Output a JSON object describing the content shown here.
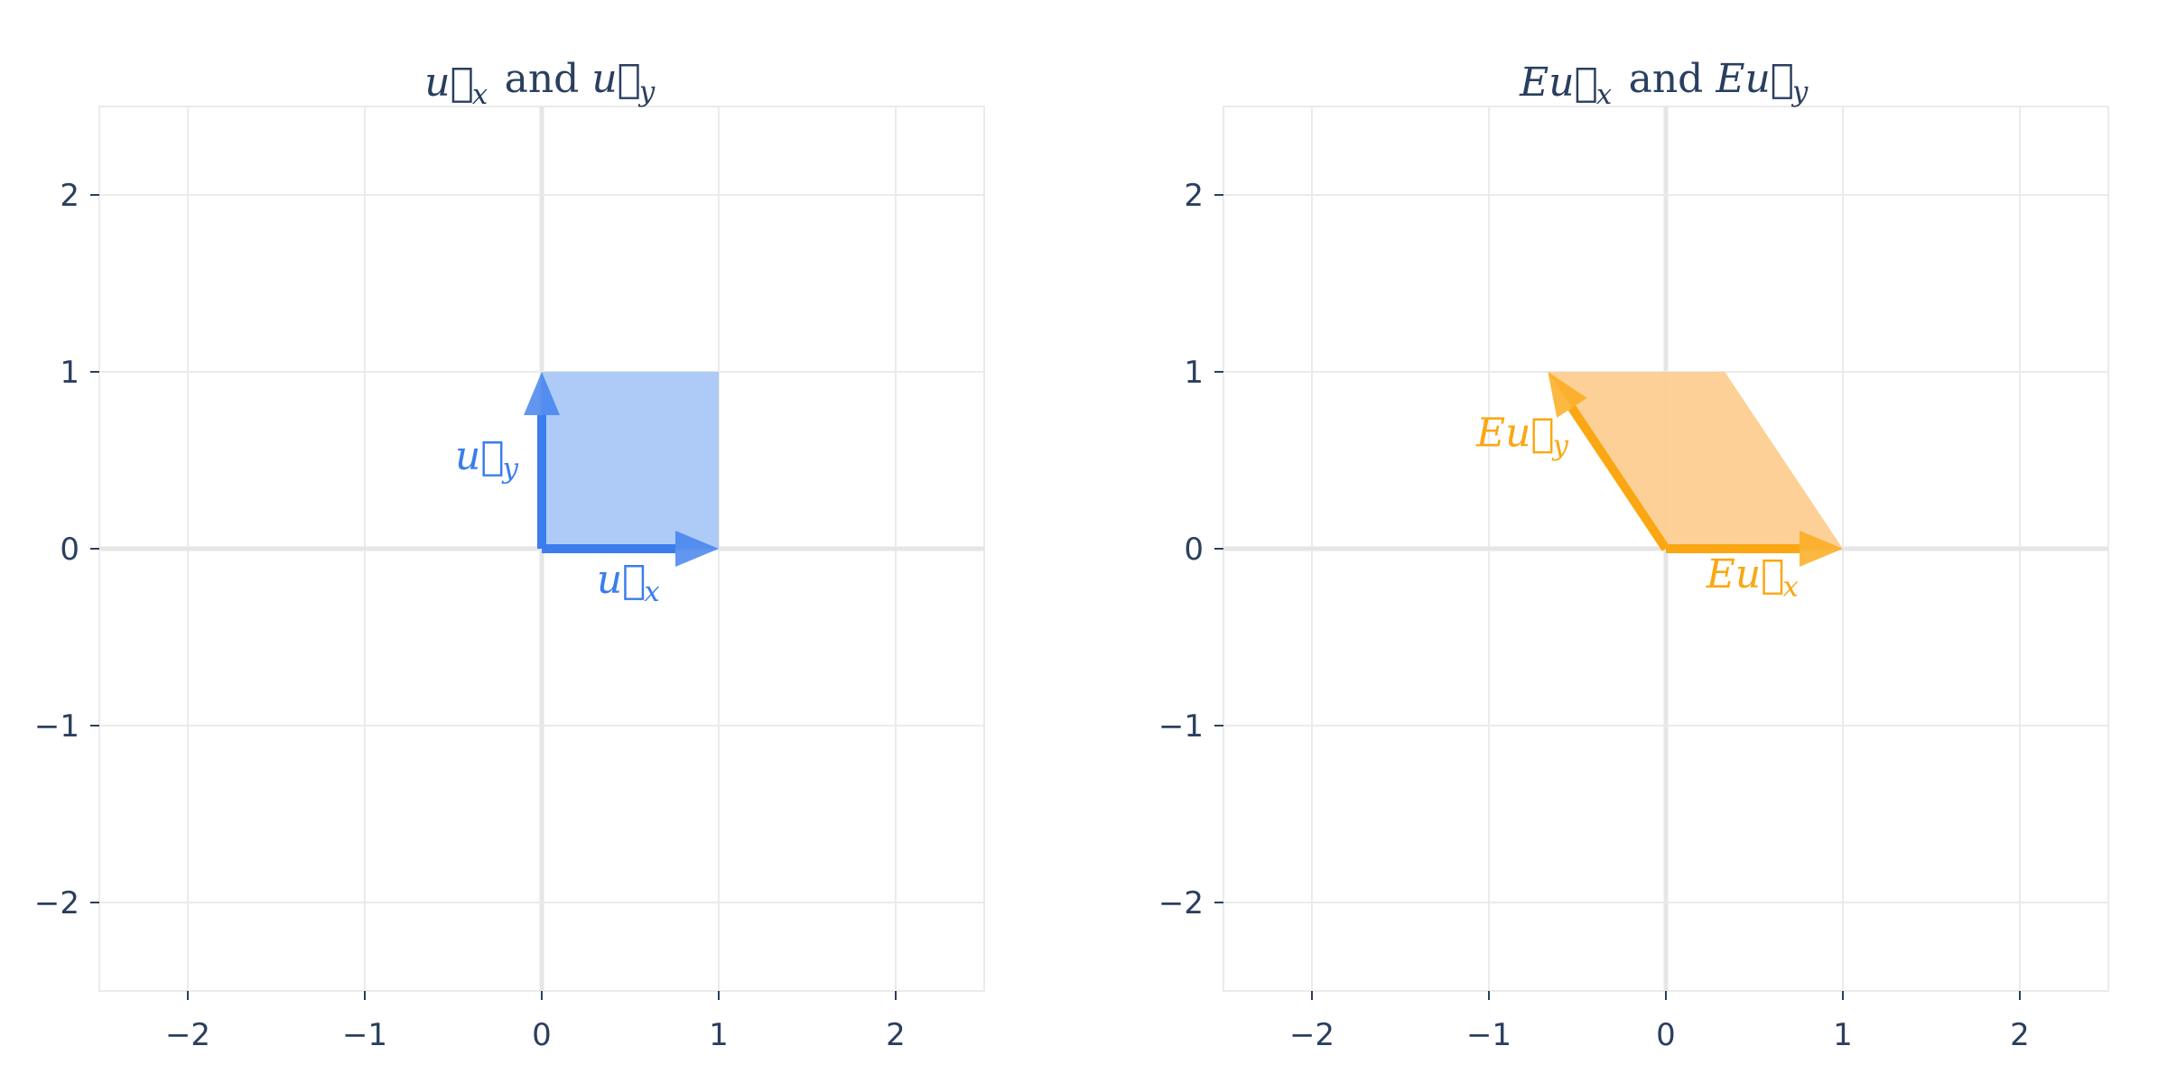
{
  "chart_data": [
    {
      "type": "vector",
      "title": {
        "parts": [
          [
            "u",
            "x"
          ],
          [
            "u",
            "y"
          ]
        ],
        "prefix": "",
        "joiner": "and"
      },
      "xlim": [
        -2.5,
        2.5
      ],
      "ylim": [
        -2.5,
        2.5
      ],
      "xticks": [
        -2,
        -1,
        0,
        1,
        2
      ],
      "yticks": [
        -2,
        -1,
        0,
        1,
        2
      ],
      "tick_text": {
        "-2": "−2",
        "-1": "−1",
        "0": "0",
        "1": "1",
        "2": "2"
      },
      "color": "#3b7ded",
      "fill_color": "#aac8f7",
      "polygon": [
        [
          0,
          0
        ],
        [
          1,
          0
        ],
        [
          1,
          1
        ],
        [
          0,
          1
        ]
      ],
      "vectors": [
        {
          "id": "ux",
          "from": [
            0,
            0
          ],
          "to": [
            1,
            0
          ],
          "label_prefix": "",
          "label_base": "u",
          "label_sub": "x",
          "label_pos": [
            0.5,
            -0.25
          ]
        },
        {
          "id": "uy",
          "from": [
            0,
            0
          ],
          "to": [
            0,
            1
          ],
          "label_prefix": "",
          "label_base": "u",
          "label_sub": "y",
          "label_pos": [
            -0.3,
            0.45
          ]
        }
      ]
    },
    {
      "type": "vector",
      "title": {
        "parts": [
          [
            "u",
            "x"
          ],
          [
            "u",
            "y"
          ]
        ],
        "prefix": "E",
        "joiner": "and"
      },
      "xlim": [
        -2.5,
        2.5
      ],
      "ylim": [
        -2.5,
        2.5
      ],
      "xticks": [
        -2,
        -1,
        0,
        1,
        2
      ],
      "yticks": [
        -2,
        -1,
        0,
        1,
        2
      ],
      "tick_text": {
        "-2": "−2",
        "-1": "−1",
        "0": "0",
        "1": "1",
        "2": "2"
      },
      "color": "#fba713",
      "fill_color": "#fdcd91",
      "polygon": [
        [
          0,
          0
        ],
        [
          1,
          0
        ],
        [
          0.333,
          1
        ],
        [
          -0.667,
          1
        ]
      ],
      "vectors": [
        {
          "id": "Eux",
          "from": [
            0,
            0
          ],
          "to": [
            1,
            0
          ],
          "label_prefix": "E",
          "label_base": "u",
          "label_sub": "x",
          "label_pos": [
            0.5,
            -0.22
          ]
        },
        {
          "id": "Euy",
          "from": [
            0,
            0
          ],
          "to": [
            -0.667,
            1
          ],
          "label_prefix": "E",
          "label_base": "u",
          "label_sub": "y",
          "label_pos": [
            -0.8,
            0.58
          ]
        }
      ]
    }
  ]
}
